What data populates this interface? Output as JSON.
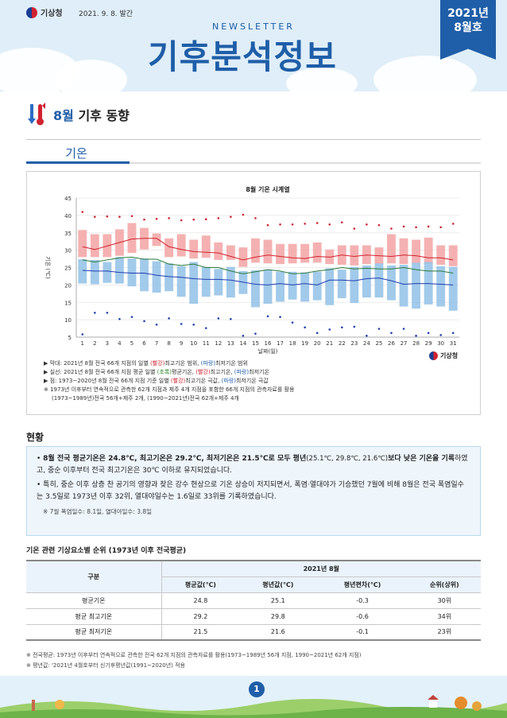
{
  "header": {
    "org_name": "기상청",
    "pub_date": "2021. 9. 8. 발간",
    "newsletter_label": "NEWSLETTER",
    "title": "기후분석정보",
    "issue_year": "2021년",
    "issue_month": "8월호"
  },
  "section": {
    "month": "8월",
    "title": "기후 동향",
    "subtab": "기온"
  },
  "chart_data": {
    "type": "line",
    "title": "8월 기온 시계열",
    "xlabel": "날짜(일)",
    "ylabel": "기온 (℃)",
    "ylim": [
      5,
      45
    ],
    "yticks": [
      5,
      10,
      15,
      20,
      25,
      30,
      35,
      40,
      45
    ],
    "x": [
      1,
      2,
      3,
      4,
      5,
      6,
      7,
      8,
      9,
      10,
      11,
      12,
      13,
      14,
      15,
      16,
      17,
      18,
      19,
      20,
      21,
      22,
      23,
      24,
      25,
      26,
      27,
      28,
      29,
      30,
      31
    ],
    "series": [
      {
        "name": "평균기온",
        "color": "#2a7a3a",
        "values": [
          27.2,
          26.6,
          27.2,
          27.8,
          28.0,
          27.4,
          27.4,
          26.0,
          25.6,
          26.0,
          25.0,
          25.0,
          24.0,
          23.2,
          23.8,
          24.4,
          24.0,
          23.2,
          23.4,
          24.0,
          24.4,
          25.0,
          24.6,
          24.8,
          24.6,
          24.6,
          25.0,
          24.4,
          24.0,
          24.0,
          23.4
        ]
      },
      {
        "name": "최고기온",
        "color": "#d0232f",
        "values": [
          31.0,
          30.2,
          31.2,
          32.2,
          33.2,
          33.4,
          33.4,
          31.0,
          30.2,
          29.6,
          29.4,
          29.2,
          28.2,
          27.2,
          28.0,
          28.6,
          28.2,
          27.8,
          27.6,
          28.2,
          28.0,
          28.6,
          28.2,
          28.6,
          28.4,
          28.2,
          28.6,
          28.4,
          27.8,
          27.8,
          27.2
        ]
      },
      {
        "name": "최저기온",
        "color": "#1f3eb0",
        "values": [
          24.2,
          24.0,
          24.0,
          23.6,
          23.4,
          23.4,
          22.8,
          22.4,
          22.2,
          21.8,
          21.6,
          21.6,
          21.4,
          20.8,
          20.2,
          20.0,
          20.4,
          20.0,
          20.4,
          20.0,
          21.4,
          21.4,
          21.2,
          21.8,
          22.0,
          21.2,
          20.2,
          20.4,
          20.4,
          20.2,
          20.0
        ]
      }
    ],
    "bands": [
      {
        "name": "최고기온 범위",
        "color": "#f4a8a8",
        "low": [
          28.0,
          28.0,
          28.0,
          28.4,
          29.2,
          30.2,
          31.2,
          28.0,
          28.2,
          27.6,
          27.8,
          27.2,
          27.2,
          25.2,
          26.4,
          26.2,
          26.0,
          26.2,
          26.4,
          26.4,
          26.0,
          25.8,
          25.6,
          26.0,
          26.0,
          26.2,
          26.0,
          26.2,
          26.0,
          25.8,
          25.4
        ],
        "high": [
          35.8,
          34.6,
          34.6,
          36.0,
          37.8,
          36.4,
          34.8,
          33.4,
          34.6,
          33.0,
          34.2,
          32.2,
          31.4,
          30.8,
          33.4,
          33.0,
          31.8,
          31.8,
          31.8,
          32.2,
          30.2,
          31.4,
          31.4,
          31.4,
          30.8,
          34.6,
          33.4,
          33.0,
          33.6,
          31.4,
          31.4
        ]
      },
      {
        "name": "최저기온 범위",
        "color": "#98c4e8",
        "low": [
          20.4,
          20.2,
          20.6,
          20.4,
          19.6,
          18.2,
          17.8,
          18.2,
          16.6,
          14.6,
          16.6,
          17.0,
          16.4,
          17.4,
          13.6,
          14.6,
          15.2,
          15.8,
          15.2,
          15.6,
          14.2,
          16.2,
          14.8,
          16.4,
          16.4,
          15.6,
          13.8,
          13.2,
          14.4,
          13.8,
          12.6
        ],
        "high": [
          27.4,
          27.2,
          26.6,
          28.0,
          27.6,
          27.6,
          26.8,
          26.2,
          25.4,
          26.6,
          25.2,
          24.6,
          25.2,
          24.0,
          24.2,
          24.4,
          23.8,
          23.8,
          23.6,
          23.8,
          24.8,
          24.4,
          25.2,
          25.6,
          26.2,
          25.6,
          25.8,
          26.4,
          26.6,
          25.4,
          25.2
        ]
      }
    ],
    "extremes_max": [
      41.0,
      39.6,
      39.7,
      39.6,
      39.8,
      38.8,
      39.0,
      39.2,
      38.6,
      38.8,
      38.9,
      39.2,
      39.6,
      40.2,
      39.2,
      37.2,
      37.4,
      37.4,
      37.6,
      37.8,
      37.4,
      38.0,
      36.2,
      37.4,
      37.2,
      36.2,
      36.8,
      36.6,
      36.8,
      36.6,
      37.6
    ],
    "extremes_min": [
      5.8,
      12.0,
      12.0,
      10.2,
      10.8,
      9.6,
      8.6,
      10.4,
      8.8,
      8.6,
      7.6,
      10.4,
      10.2,
      5.4,
      6.0,
      11.0,
      10.8,
      9.2,
      7.8,
      6.2,
      7.2,
      7.8,
      8.0,
      5.4,
      7.4,
      6.2,
      7.4,
      5.4,
      6.2,
      5.6,
      6.2
    ]
  },
  "chart_notes": {
    "line1_prefix": "▶ 막대: 2021년 8월 전국 66개 지점의 일별 ",
    "line1_red": "(빨강)",
    "line1_mid": "최고기온 범위, ",
    "line1_blue": "(파랑)",
    "line1_suffix": "최저기온 범위",
    "line2_prefix": "▶ 실선: 2021년 8월 전국 66개 지점 평균 일별 ",
    "line2_green": "(초록)",
    "line2_mid": "평균기온, ",
    "line2_red": "(빨강)",
    "line2_mid2": "최고기온, ",
    "line2_blue": "(파랑)",
    "line2_suffix": "최저기온",
    "line3_prefix": "▶ 점: 1973~2020년 8월 전국 66개 지점 기준 일별 ",
    "line3_red": "(빨강)",
    "line3_mid": "최고기온 극값, ",
    "line3_blue": "(파랑)",
    "line3_suffix": "최저기온 극값",
    "line4": "※ 1973년 이후부터 연속적으로 관측한 62개 지점과 제주 4개 지점을 포함한 66개 지점의 관측자료를 활용",
    "line5": "(1973~1989년)전국 56개+제주 2개, (1990~2021년)전국 62개+제주 4개",
    "kma_logo": "기상청"
  },
  "status": {
    "title": "현황",
    "p1_strong": "8월 전국 평균기온은 24.8℃, 최고기온은 29.2℃, 최저기온은 21.5℃로 모두 평년",
    "p1_paren": "(25.1℃, 29.8℃, 21.6℃)",
    "p1_strong2": "보다 낮은 기온을 기록",
    "p1_rest": "하였고, 중순 이후부터 전국 최고기온은 30℃ 이하로 유지되었습니다.",
    "p2": "특히, 중순 이후 상층 찬 공기의 영향과 잦은 강수 현상으로 기온 상승이 저지되면서, 폭염·열대야가 기승했던 7월에 비해 8월은 전국 폭염일수는 3.5일로 1973년 이후 32위, 열대야일수는 1.6일로 33위를 기록하였습니다.",
    "note": "※ 7월 폭염일수: 8.1일, 열대야일수: 3.8일"
  },
  "table": {
    "title": "기온 관련 기상요소별 순위 (1973년 이후 전국평균)",
    "col_group": "구분",
    "period": "2021년 8월",
    "headers": [
      "평균값(℃)",
      "평년값(℃)",
      "평년편차(℃)",
      "순위(상위)"
    ],
    "rows": [
      [
        "평균기온",
        "24.8",
        "25.1",
        "-0.3",
        "30위"
      ],
      [
        "평균 최고기온",
        "29.2",
        "29.8",
        "-0.6",
        "34위"
      ],
      [
        "평균 최저기온",
        "21.5",
        "21.6",
        "-0.1",
        "23위"
      ]
    ]
  },
  "foot_notes": {
    "line1": "※ 전국평균: 1973년 이후부터 연속적으로 관측한 전국 62개 지점의 관측자료를 활용(1973~1989년 56개 지점, 1990~2021년 62개 지점)",
    "line2": "※ 평년값: '2021년 4월호부터 신기후평년값(1991~2020년) 적용"
  },
  "page_number": "1"
}
